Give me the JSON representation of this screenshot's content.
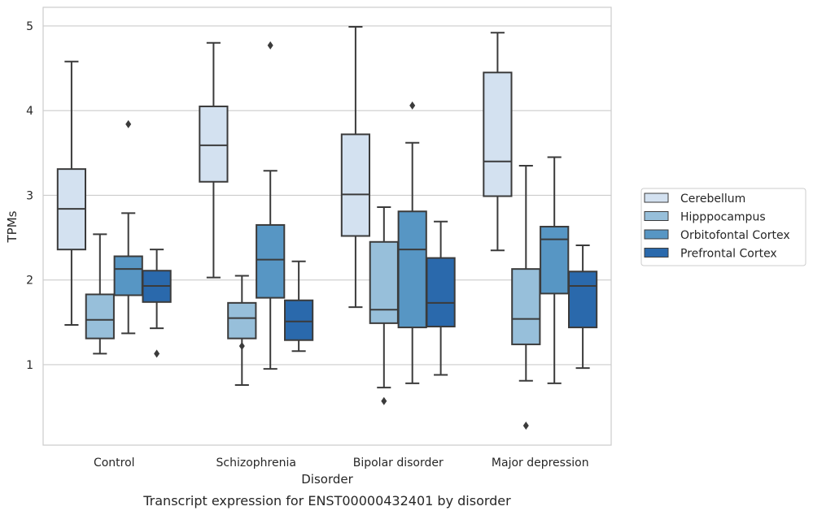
{
  "chart_data": {
    "type": "box",
    "caption": "Transcript expression for ENST00000432401 by disorder",
    "xlabel": "Disorder",
    "ylabel": "TPMs",
    "categories": [
      "Control",
      "Schizophrenia",
      "Bipolar disorder",
      "Major depression"
    ],
    "yticks": [
      1,
      2,
      3,
      4,
      5
    ],
    "ylim": [
      0.05,
      5.22
    ],
    "grid": "horizontal",
    "legend_position": "right",
    "series": [
      {
        "name": "Cerebellum",
        "color": "#d3e1f0",
        "boxes": [
          {
            "whisker_low": 1.47,
            "q1": 2.36,
            "median": 2.84,
            "q3": 3.31,
            "whisker_high": 4.58,
            "outliers": []
          },
          {
            "whisker_low": 2.03,
            "q1": 3.16,
            "median": 3.59,
            "q3": 4.05,
            "whisker_high": 4.8,
            "outliers": []
          },
          {
            "whisker_low": 1.68,
            "q1": 2.52,
            "median": 3.01,
            "q3": 3.72,
            "whisker_high": 4.99,
            "outliers": []
          },
          {
            "whisker_low": 2.35,
            "q1": 2.99,
            "median": 3.4,
            "q3": 4.45,
            "whisker_high": 4.92,
            "outliers": []
          }
        ]
      },
      {
        "name": "Hipppocampus",
        "color": "#97bfda",
        "boxes": [
          {
            "whisker_low": 1.13,
            "q1": 1.31,
            "median": 1.53,
            "q3": 1.83,
            "whisker_high": 2.54,
            "outliers": []
          },
          {
            "whisker_low": 0.76,
            "q1": 1.31,
            "median": 1.55,
            "q3": 1.73,
            "whisker_high": 2.05,
            "outliers": [
              1.22
            ]
          },
          {
            "whisker_low": 0.73,
            "q1": 1.49,
            "median": 1.65,
            "q3": 2.45,
            "whisker_high": 2.86,
            "outliers": [
              0.57
            ]
          },
          {
            "whisker_low": 0.81,
            "q1": 1.24,
            "median": 1.54,
            "q3": 2.13,
            "whisker_high": 3.35,
            "outliers": [
              0.28
            ]
          }
        ]
      },
      {
        "name": "Orbitofontal Cortex",
        "color": "#5796c4",
        "boxes": [
          {
            "whisker_low": 1.37,
            "q1": 1.82,
            "median": 2.13,
            "q3": 2.28,
            "whisker_high": 2.79,
            "outliers": [
              3.84
            ]
          },
          {
            "whisker_low": 0.95,
            "q1": 1.79,
            "median": 2.24,
            "q3": 2.65,
            "whisker_high": 3.29,
            "outliers": [
              4.77
            ]
          },
          {
            "whisker_low": 0.78,
            "q1": 1.44,
            "median": 2.36,
            "q3": 2.81,
            "whisker_high": 3.62,
            "outliers": [
              4.06
            ]
          },
          {
            "whisker_low": 0.78,
            "q1": 1.84,
            "median": 2.48,
            "q3": 2.63,
            "whisker_high": 3.45,
            "outliers": []
          }
        ]
      },
      {
        "name": "Prefrontal Cortex",
        "color": "#2a69ac",
        "boxes": [
          {
            "whisker_low": 1.43,
            "q1": 1.74,
            "median": 1.93,
            "q3": 2.11,
            "whisker_high": 2.36,
            "outliers": [
              1.13
            ]
          },
          {
            "whisker_low": 1.16,
            "q1": 1.29,
            "median": 1.51,
            "q3": 1.76,
            "whisker_high": 2.22,
            "outliers": []
          },
          {
            "whisker_low": 0.88,
            "q1": 1.45,
            "median": 1.73,
            "q3": 2.26,
            "whisker_high": 2.69,
            "outliers": []
          },
          {
            "whisker_low": 0.96,
            "q1": 1.44,
            "median": 1.93,
            "q3": 2.1,
            "whisker_high": 2.41,
            "outliers": []
          }
        ]
      }
    ]
  }
}
